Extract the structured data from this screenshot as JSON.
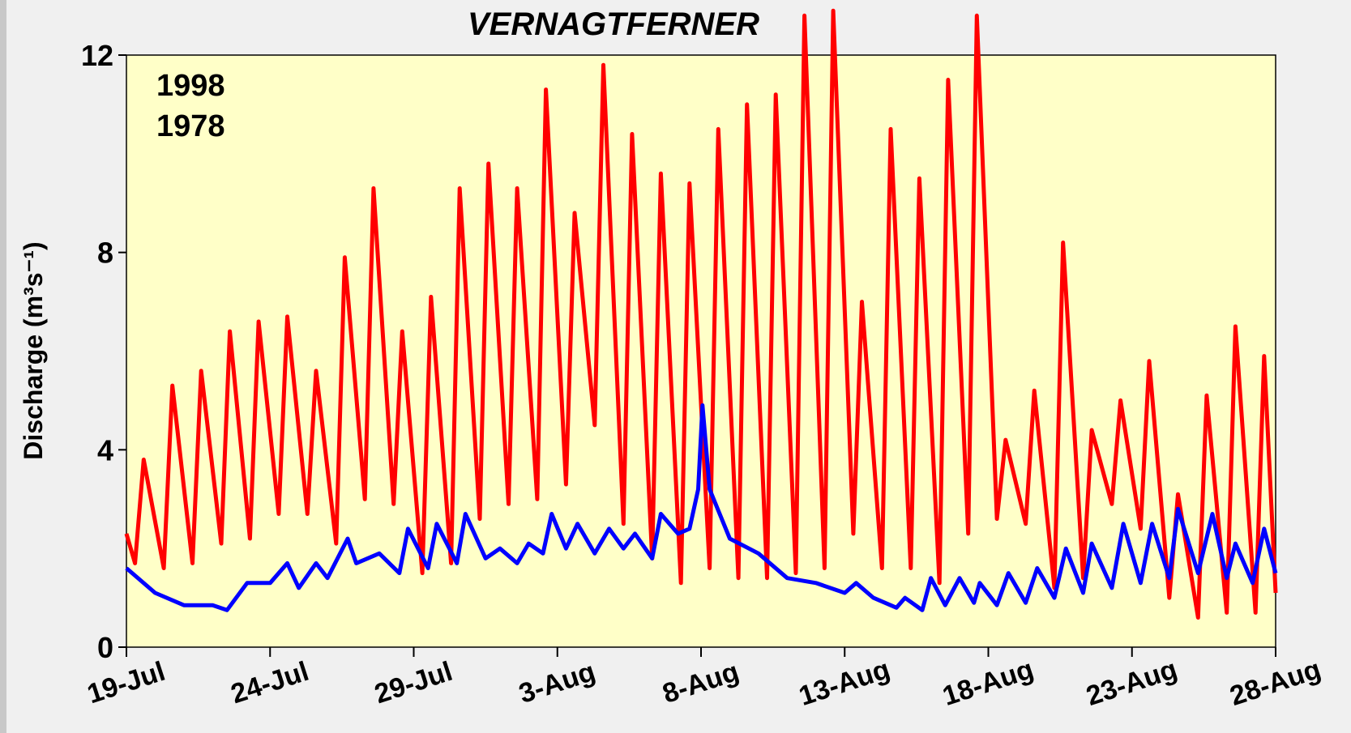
{
  "chart_data": {
    "type": "line",
    "title": "VERNAGTFERNER",
    "y_label": "Discharge (m³s⁻¹)",
    "xlim": [
      0,
      40
    ],
    "xticks": [
      {
        "value": 0,
        "label": "19-Jul"
      },
      {
        "value": 5,
        "label": "24-Jul"
      },
      {
        "value": 10,
        "label": "29-Jul"
      },
      {
        "value": 15,
        "label": "3-Aug"
      },
      {
        "value": 20,
        "label": "8-Aug"
      },
      {
        "value": 25,
        "label": "13-Aug"
      },
      {
        "value": 30,
        "label": "18-Aug"
      },
      {
        "value": 35,
        "label": "23-Aug"
      },
      {
        "value": 40,
        "label": "28-Aug"
      }
    ],
    "ylim": [
      0,
      12
    ],
    "yticks": [
      0,
      4,
      8,
      12
    ],
    "series": [
      {
        "name": "1998",
        "color": "#ff0000",
        "x": [
          0,
          0.3,
          0.6,
          1.3,
          1.6,
          2.3,
          2.6,
          3.3,
          3.6,
          4.3,
          4.6,
          5.3,
          5.6,
          6.3,
          6.6,
          7.3,
          7.6,
          8.3,
          8.6,
          9.3,
          9.6,
          10.3,
          10.6,
          11.3,
          11.6,
          12.3,
          12.6,
          13.3,
          13.6,
          14.3,
          14.6,
          15.3,
          15.6,
          16.3,
          16.6,
          17.3,
          17.6,
          18.3,
          18.6,
          19.3,
          19.6,
          20.3,
          20.6,
          21.3,
          21.6,
          22.3,
          22.6,
          23.3,
          23.6,
          24.3,
          24.6,
          25.3,
          25.6,
          26.3,
          26.6,
          27.3,
          27.6,
          28.3,
          28.6,
          29.3,
          29.6,
          30.3,
          30.6,
          31.3,
          31.6,
          32.3,
          32.6,
          33.3,
          33.6,
          34.3,
          34.6,
          35.3,
          35.6,
          36.3,
          36.6,
          37.3,
          37.6,
          38.3,
          38.6,
          39.3,
          39.6,
          40
        ],
        "values": [
          2.3,
          1.7,
          3.8,
          1.6,
          5.3,
          1.7,
          5.6,
          2.1,
          6.4,
          2.2,
          6.6,
          2.7,
          6.7,
          2.7,
          5.6,
          2.1,
          7.9,
          3.0,
          9.3,
          2.9,
          6.4,
          1.5,
          7.1,
          1.7,
          9.3,
          2.6,
          9.8,
          2.9,
          9.3,
          3.0,
          11.3,
          3.3,
          8.8,
          4.5,
          11.8,
          2.5,
          10.4,
          1.8,
          9.6,
          1.3,
          9.4,
          1.6,
          10.5,
          1.4,
          11.0,
          1.4,
          11.2,
          1.5,
          12.8,
          1.6,
          12.9,
          2.3,
          7.0,
          1.6,
          10.5,
          1.6,
          9.5,
          1.3,
          11.5,
          2.3,
          12.8,
          2.6,
          4.2,
          2.5,
          5.2,
          1.2,
          8.2,
          1.4,
          4.4,
          2.9,
          5.0,
          2.4,
          5.8,
          1.0,
          3.1,
          0.6,
          5.1,
          0.7,
          6.5,
          0.7,
          5.9,
          1.1
        ]
      },
      {
        "name": "1978",
        "color": "#0000ff",
        "x": [
          0,
          1,
          2,
          3,
          3.5,
          4.2,
          5,
          5.6,
          6,
          6.6,
          7,
          7.7,
          8,
          8.8,
          9.5,
          9.8,
          10.5,
          10.8,
          11.5,
          11.8,
          12.5,
          13,
          13.6,
          14,
          14.5,
          14.8,
          15.3,
          15.7,
          16.3,
          16.8,
          17.3,
          17.7,
          18.3,
          18.6,
          19.2,
          19.6,
          19.9,
          20.05,
          20.3,
          21,
          22,
          23,
          24,
          25,
          25.4,
          26,
          26.8,
          27.1,
          27.7,
          28,
          28.5,
          29,
          29.5,
          29.7,
          30.3,
          30.7,
          31.3,
          31.7,
          32.3,
          32.7,
          33.3,
          33.6,
          34.3,
          34.7,
          35.3,
          35.7,
          36.3,
          36.6,
          37.3,
          37.8,
          38.3,
          38.6,
          39.2,
          39.6,
          40
        ],
        "values": [
          1.6,
          1.1,
          0.85,
          0.85,
          0.75,
          1.3,
          1.3,
          1.7,
          1.2,
          1.7,
          1.4,
          2.2,
          1.7,
          1.9,
          1.5,
          2.4,
          1.6,
          2.5,
          1.7,
          2.7,
          1.8,
          2.0,
          1.7,
          2.1,
          1.9,
          2.7,
          2.0,
          2.5,
          1.9,
          2.4,
          2.0,
          2.3,
          1.8,
          2.7,
          2.3,
          2.4,
          3.2,
          4.9,
          3.2,
          2.2,
          1.9,
          1.4,
          1.3,
          1.1,
          1.3,
          1.0,
          0.8,
          1.0,
          0.75,
          1.4,
          0.85,
          1.4,
          0.9,
          1.3,
          0.85,
          1.5,
          0.9,
          1.6,
          1.0,
          2.0,
          1.1,
          2.1,
          1.2,
          2.5,
          1.3,
          2.5,
          1.4,
          2.8,
          1.5,
          2.7,
          1.4,
          2.1,
          1.3,
          2.4,
          1.5
        ]
      }
    ]
  }
}
